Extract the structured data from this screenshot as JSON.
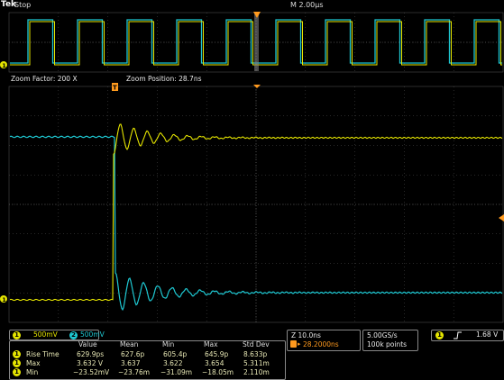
{
  "header": {
    "brand": "Tek",
    "status": "Stop",
    "horizontal_scale": "M 2.00µs"
  },
  "zoom": {
    "factor_label": "Zoom Factor: 200 X",
    "position_label": "Zoom Position: 28.7ns"
  },
  "markers": {
    "ch1_ground": "1",
    "trigger_marker": "T"
  },
  "channels": [
    {
      "number": "1",
      "scale": "500mV",
      "color": "#e6e600"
    },
    {
      "number": "2",
      "scale": "500mV",
      "color": "#1ec8d2"
    }
  ],
  "measurements": {
    "columns": [
      "Value",
      "Mean",
      "Min",
      "Max",
      "Std Dev"
    ],
    "rows": [
      {
        "channel": "1",
        "name": "Rise Time",
        "values": [
          "629.9ps",
          "627.6p",
          "605.4p",
          "645.9p",
          "8.633p"
        ]
      },
      {
        "channel": "1",
        "name": "Max",
        "values": [
          "3.632 V",
          "3.637",
          "3.622",
          "3.654",
          "5.311m"
        ]
      },
      {
        "channel": "1",
        "name": "Min",
        "values": [
          "−23.52mV",
          "−23.76m",
          "−31.09m",
          "−18.05m",
          "2.110m"
        ]
      }
    ]
  },
  "timebase": {
    "zoom_scale": "Z 10.0ns",
    "trigger_offset": "28.2000ns"
  },
  "acquisition": {
    "sample_rate": "5.00GS/s",
    "record_length": "100k points"
  },
  "trigger": {
    "channel": "1",
    "slope_icon": "rising-edge-icon",
    "level": "1.68 V"
  },
  "colors": {
    "ch1": "#e6e600",
    "ch2": "#1ec8d2",
    "trigger": "#ff9a1e",
    "grid": "#505050"
  }
}
